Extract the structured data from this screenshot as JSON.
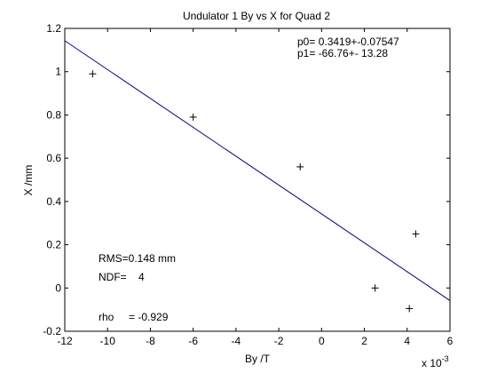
{
  "chart_data": {
    "type": "scatter",
    "title": "Undulator 1 By vs X for Quad 2",
    "xlabel": "By /T",
    "ylabel": "X /mm",
    "x_multiplier": "x 10",
    "x_multiplier_exponent": "-3",
    "xlim": [
      -12,
      6
    ],
    "ylim": [
      -0.2,
      1.2
    ],
    "xticks": [
      "-12",
      "-10",
      "-8",
      "-6",
      "-4",
      "-2",
      "0",
      "2",
      "4",
      "6"
    ],
    "yticks": [
      "-0.2",
      "0",
      "0.2",
      "0.4",
      "0.6",
      "0.8",
      "1",
      "1.2"
    ],
    "grid": false,
    "series": [
      {
        "marker": "+",
        "color": "#000000",
        "x": [
          -10.7,
          -6.0,
          -1.0,
          2.5,
          4.1,
          4.4
        ],
        "y": [
          0.99,
          0.79,
          0.56,
          0.0,
          -0.095,
          0.25
        ]
      }
    ],
    "fit_line": {
      "color": "#0000aa",
      "x": [
        -12,
        6
      ],
      "y": [
        1.143,
        -0.058
      ]
    },
    "fit_params": {
      "p0": "p0= 0.3419+-0.07547",
      "p1": "p1= -66.76+- 13.28"
    },
    "stats": {
      "rms": "RMS=0.148 mm",
      "ndf": "NDF=    4",
      "rho": "rho     = -0.929"
    }
  }
}
